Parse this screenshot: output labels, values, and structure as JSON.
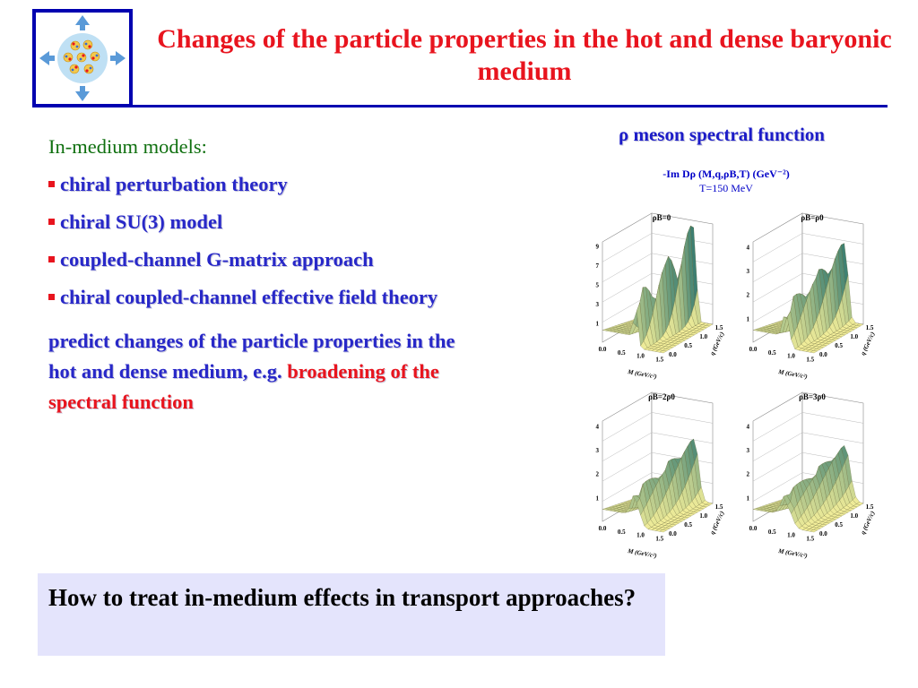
{
  "title": "Changes of the particle properties in the hot and dense baryonic medium",
  "left": {
    "heading": "In-medium models:",
    "bullets": [
      "chiral perturbation theory",
      "chiral SU(3) model",
      "coupled-channel G-matrix approach",
      "chiral coupled-channel effective field theory"
    ],
    "predict_text": "predict changes of the particle properties in the hot and dense medium, e.g. ",
    "predict_highlight": "broadening of the spectral function"
  },
  "figure": {
    "title": "ρ meson spectral function",
    "caption_line1": "-Im Dρ (M,q,ρB,T) (GeV⁻²)",
    "caption_line2": "T=150 MeV",
    "panels": [
      {
        "label": "ρB=0",
        "z_ticks": [
          "1",
          "3",
          "5",
          "7",
          "9"
        ],
        "peak": 1.0,
        "width": 0.55
      },
      {
        "label": "ρB=ρ0",
        "z_ticks": [
          "1",
          "2",
          "3",
          "4"
        ],
        "peak": 0.8,
        "width": 0.8
      },
      {
        "label": "ρB=2ρ0",
        "z_ticks": [
          "1",
          "2",
          "3",
          "4"
        ],
        "peak": 0.62,
        "width": 1.1
      },
      {
        "label": "ρB=3ρ0",
        "z_ticks": [
          "1",
          "2",
          "3",
          "4"
        ],
        "peak": 0.55,
        "width": 1.35
      }
    ],
    "m_ticks": [
      "0.0",
      "0.5",
      "1.0",
      "1.5"
    ],
    "q_ticks": [
      "0.0",
      "0.5",
      "1.0",
      "1.5"
    ],
    "m_label": "M (GeV/c²)",
    "q_label": "q (GeV/c)",
    "colors": {
      "surface_low": "#f4ef9a",
      "surface_high": "#1a6a6a"
    }
  },
  "bottom": {
    "question": "How to treat in-medium effects in transport approaches?"
  }
}
